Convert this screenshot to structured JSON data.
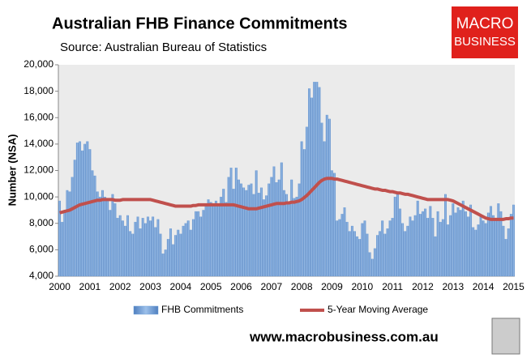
{
  "chart_data": {
    "type": "bar_line",
    "title": "Australian FHB Finance Commitments",
    "subtitle": "Source: Australian Bureau of Statistics",
    "y_label": "Number (NSA)",
    "logo": [
      "MACRO",
      "BUSINESS"
    ],
    "footer": "www.macrobusiness.com.au",
    "categories": [
      "2000",
      null,
      null,
      null,
      null,
      null,
      null,
      null,
      null,
      null,
      null,
      null,
      "2001",
      null,
      null,
      null,
      null,
      null,
      null,
      null,
      null,
      null,
      null,
      null,
      "2002",
      null,
      null,
      null,
      null,
      null,
      null,
      null,
      null,
      null,
      null,
      null,
      "2003",
      null,
      null,
      null,
      null,
      null,
      null,
      null,
      null,
      null,
      null,
      null,
      "2004",
      null,
      null,
      null,
      null,
      null,
      null,
      null,
      null,
      null,
      null,
      null,
      "2005",
      null,
      null,
      null,
      null,
      null,
      null,
      null,
      null,
      null,
      null,
      null,
      "2006",
      null,
      null,
      null,
      null,
      null,
      null,
      null,
      null,
      null,
      null,
      null,
      "2007",
      null,
      null,
      null,
      null,
      null,
      null,
      null,
      null,
      null,
      null,
      null,
      "2008",
      null,
      null,
      null,
      null,
      null,
      null,
      null,
      null,
      null,
      null,
      null,
      "2009",
      null,
      null,
      null,
      null,
      null,
      null,
      null,
      null,
      null,
      null,
      null,
      "2010",
      null,
      null,
      null,
      null,
      null,
      null,
      null,
      null,
      null,
      null,
      null,
      "2011",
      null,
      null,
      null,
      null,
      null,
      null,
      null,
      null,
      null,
      null,
      null,
      "2012",
      null,
      null,
      null,
      null,
      null,
      null,
      null,
      null,
      null,
      null,
      null,
      "2013",
      null,
      null,
      null,
      null,
      null,
      null,
      null,
      null,
      null,
      null,
      null,
      "2014",
      null,
      null,
      null,
      null,
      null,
      null,
      null,
      null,
      null,
      null,
      null,
      "2015"
    ],
    "series": [
      {
        "name": "FHB Commitments",
        "kind": "bar",
        "color": "#6f9fd8",
        "values": [
          9700,
          8100,
          9000,
          10500,
          10400,
          11500,
          12800,
          14100,
          14200,
          13500,
          14000,
          14200,
          13600,
          12000,
          11600,
          10400,
          10000,
          10500,
          10000,
          9800,
          9000,
          10200,
          9500,
          8400,
          8600,
          8200,
          7800,
          8600,
          7400,
          7200,
          8100,
          8500,
          7600,
          8400,
          8000,
          8500,
          8200,
          8500,
          7700,
          8300,
          7200,
          5700,
          6000,
          6800,
          7600,
          6400,
          7100,
          7500,
          7200,
          7800,
          8000,
          8200,
          7500,
          8300,
          8900,
          8900,
          8500,
          9000,
          9400,
          9800,
          9600,
          9500,
          9700,
          9300,
          10000,
          10600,
          9600,
          11500,
          12200,
          10600,
          12200,
          11300,
          11000,
          10700,
          10500,
          10900,
          11000,
          10200,
          12000,
          10300,
          10700,
          9800,
          10100,
          11000,
          11500,
          12300,
          11100,
          11300,
          12600,
          10500,
          10200,
          9600,
          11300,
          9900,
          10000,
          11000,
          14200,
          13600,
          15300,
          18200,
          17500,
          18700,
          18700,
          18300,
          15600,
          14200,
          16200,
          15900,
          12000,
          11800,
          8200,
          8300,
          8700,
          9200,
          8100,
          7400,
          7800,
          7400,
          7000,
          6800,
          8000,
          8200,
          7200,
          5800,
          5300,
          6100,
          7100,
          7400,
          8200,
          7200,
          7600,
          8200,
          8400,
          10000,
          10300,
          9100,
          8000,
          7400,
          7800,
          8500,
          8200,
          8600,
          9700,
          8700,
          8900,
          9100,
          8400,
          9300,
          8400,
          7000,
          8900,
          8100,
          8300,
          10200,
          7900,
          8600,
          9500,
          8800,
          9200,
          9000,
          9700,
          8900,
          8500,
          9400,
          7700,
          7500,
          7900,
          8600,
          8200,
          8000,
          8800,
          9300,
          8600,
          8300,
          9500,
          8900,
          7800,
          6800,
          7600,
          8700,
          9400
        ]
      },
      {
        "name": "5-Year Moving Average",
        "kind": "line",
        "color": "#c0504d",
        "values": [
          8800,
          8850,
          8900,
          8950,
          9000,
          9100,
          9200,
          9300,
          9400,
          9450,
          9500,
          9550,
          9600,
          9650,
          9700,
          9750,
          9750,
          9800,
          9800,
          9800,
          9800,
          9800,
          9750,
          9750,
          9750,
          9800,
          9800,
          9800,
          9800,
          9800,
          9800,
          9800,
          9800,
          9800,
          9800,
          9800,
          9800,
          9750,
          9700,
          9650,
          9600,
          9550,
          9500,
          9450,
          9400,
          9350,
          9300,
          9300,
          9300,
          9300,
          9300,
          9300,
          9300,
          9350,
          9350,
          9400,
          9400,
          9400,
          9400,
          9400,
          9400,
          9400,
          9400,
          9400,
          9400,
          9400,
          9400,
          9400,
          9400,
          9400,
          9350,
          9300,
          9250,
          9200,
          9150,
          9100,
          9100,
          9100,
          9100,
          9150,
          9200,
          9250,
          9300,
          9350,
          9400,
          9450,
          9500,
          9500,
          9500,
          9500,
          9550,
          9550,
          9600,
          9600,
          9650,
          9700,
          9800,
          9950,
          10100,
          10300,
          10500,
          10700,
          10900,
          11100,
          11250,
          11350,
          11400,
          11400,
          11400,
          11350,
          11350,
          11300,
          11250,
          11200,
          11150,
          11100,
          11050,
          11000,
          10950,
          10900,
          10850,
          10800,
          10750,
          10700,
          10650,
          10600,
          10600,
          10550,
          10500,
          10500,
          10450,
          10400,
          10400,
          10350,
          10300,
          10300,
          10250,
          10200,
          10200,
          10150,
          10100,
          10050,
          10000,
          9950,
          9900,
          9850,
          9800,
          9800,
          9800,
          9800,
          9800,
          9800,
          9800,
          9800,
          9800,
          9750,
          9700,
          9600,
          9500,
          9400,
          9300,
          9200,
          9100,
          9000,
          8900,
          8800,
          8700,
          8600,
          8500,
          8400,
          8350,
          8300,
          8300,
          8300,
          8300,
          8300,
          8300,
          8350,
          8350,
          8400,
          8400
        ]
      }
    ],
    "ylim": [
      4000,
      20000
    ],
    "yticks": [
      {
        "value": 4000,
        "label": "4,000"
      },
      {
        "value": 6000,
        "label": "6,000"
      },
      {
        "value": 8000,
        "label": "8,000"
      },
      {
        "value": 10000,
        "label": "10,000"
      },
      {
        "value": 12000,
        "label": "12,000"
      },
      {
        "value": 14000,
        "label": "14,000"
      },
      {
        "value": 16000,
        "label": "16,000"
      },
      {
        "value": 18000,
        "label": "18,000"
      },
      {
        "value": 20000,
        "label": "20,000"
      }
    ],
    "grid": false
  }
}
